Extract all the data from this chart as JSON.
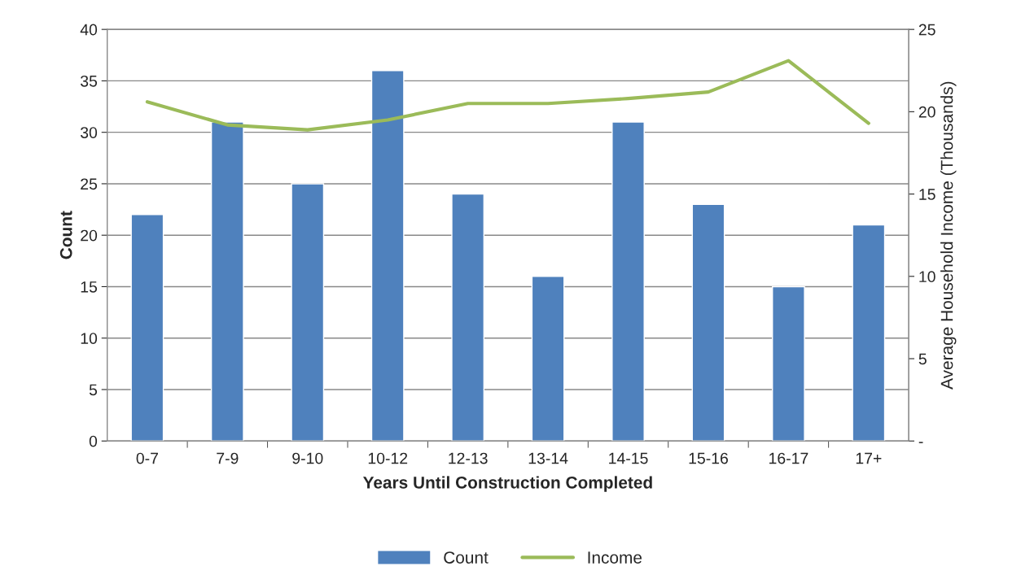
{
  "chart_data": {
    "type": "bar",
    "xlabel": "Years Until Construction Completed",
    "ylabel": "Count",
    "y2label": "Average Household Income (Thousands)",
    "categories": [
      "0-7",
      "7-9",
      "9-10",
      "10-12",
      "12-13",
      "13-14",
      "14-15",
      "15-16",
      "16-17",
      "17+"
    ],
    "series": [
      {
        "name": "Count",
        "color": "#4f81bd",
        "values": [
          22,
          31,
          25,
          36,
          24,
          16,
          31,
          23,
          15,
          21
        ]
      },
      {
        "name": "Income",
        "type": "line",
        "axis": "y2",
        "color": "#9bbb59",
        "values": [
          20.6,
          19.2,
          18.9,
          19.5,
          20.5,
          20.5,
          20.8,
          21.2,
          23.1,
          19.3
        ]
      }
    ],
    "ylim": [
      0,
      40
    ],
    "yticks": [
      0,
      5,
      10,
      15,
      20,
      25,
      30,
      35,
      40
    ],
    "y2lim": [
      0,
      25
    ],
    "y2ticks": [
      {
        "value": 0,
        "label": "-"
      },
      5,
      10,
      15,
      20,
      25
    ],
    "grid": "y",
    "legend": "bottom",
    "marker": "none",
    "line_style": "solid"
  }
}
